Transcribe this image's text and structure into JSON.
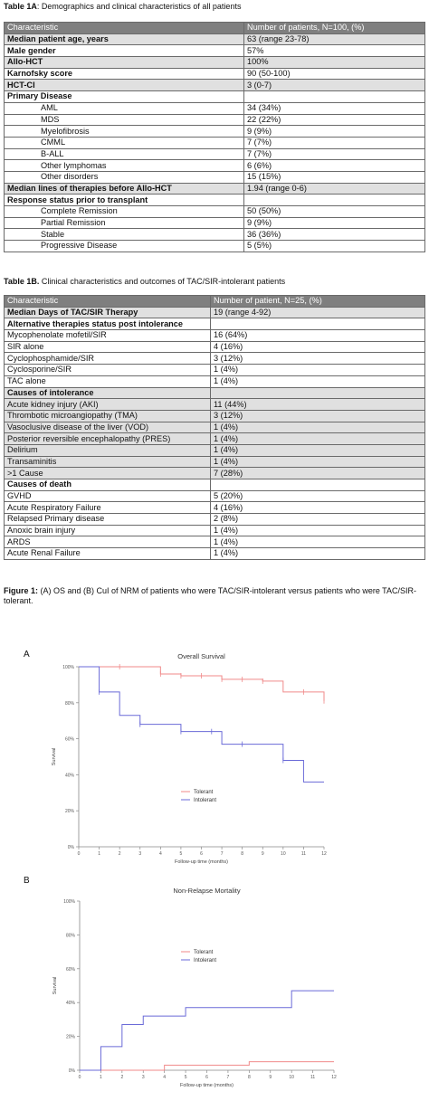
{
  "table1a": {
    "caption_bold": "Table 1A",
    "caption_rest": ": Demographics and clinical characteristics of all patients",
    "header": [
      "Characteristic",
      "Number of patients, N=100, (%)"
    ],
    "rows": [
      {
        "label": "Median patient age, years",
        "value": "63 (range 23-78)",
        "style": "bold",
        "shade": true
      },
      {
        "label": "Male gender",
        "value": "57%",
        "style": "bold",
        "shade": false
      },
      {
        "label": "Allo-HCT",
        "value": "100%",
        "style": "bold",
        "shade": true
      },
      {
        "label": "Karnofsky score",
        "value": "90 (50-100)",
        "style": "bold",
        "shade": false
      },
      {
        "label": "HCT-CI",
        "value": "3 (0-7)",
        "style": "bold",
        "shade": true
      },
      {
        "label": "Primary Disease",
        "value": "",
        "style": "bold",
        "shade": false
      },
      {
        "label": "AML",
        "value": "34 (34%)",
        "style": "indent",
        "shade": false
      },
      {
        "label": "MDS",
        "value": "22 (22%)",
        "style": "indent",
        "shade": false
      },
      {
        "label": "Myelofibrosis",
        "value": "9 (9%)",
        "style": "indent",
        "shade": false
      },
      {
        "label": "CMML",
        "value": "7 (7%)",
        "style": "indent",
        "shade": false
      },
      {
        "label": "B-ALL",
        "value": "7 (7%)",
        "style": "indent",
        "shade": false
      },
      {
        "label": "Other lymphomas",
        "value": "6 (6%)",
        "style": "indent",
        "shade": false
      },
      {
        "label": "Other disorders",
        "value": "15 (15%)",
        "style": "indent",
        "shade": false
      },
      {
        "label": "Median lines of therapies before Allo-HCT",
        "value": "1.94 (range 0-6)",
        "style": "bold",
        "shade": true
      },
      {
        "label": "Response status prior to transplant",
        "value": "",
        "style": "bold",
        "shade": false
      },
      {
        "label": "Complete Remission",
        "value": "50 (50%)",
        "style": "indent",
        "shade": false
      },
      {
        "label": "Partial Remission",
        "value": "9 (9%)",
        "style": "indent",
        "shade": false
      },
      {
        "label": "Stable",
        "value": "36 (36%)",
        "style": "indent",
        "shade": false
      },
      {
        "label": "Progressive Disease",
        "value": "5 (5%)",
        "style": "indent",
        "shade": false
      }
    ]
  },
  "table1b": {
    "caption_bold": "Table 1B.",
    "caption_rest": " Clinical characteristics and outcomes of TAC/SIR-intolerant patients",
    "header": [
      "Characteristic",
      "Number of patient, N=25, (%)"
    ],
    "rows": [
      {
        "label": "Median Days of TAC/SIR Therapy",
        "value": "19 (range 4-92)",
        "style": "bold",
        "shade": true
      },
      {
        "label": "Alternative therapies status post intolerance",
        "value": "",
        "style": "bold",
        "shade": false
      },
      {
        "label": "Mycophenolate mofetil/SIR",
        "value": "16 (64%)",
        "style": "plain",
        "shade": false
      },
      {
        "label": "SIR alone",
        "value": "4 (16%)",
        "style": "plain",
        "shade": false
      },
      {
        "label": "Cyclophosphamide/SIR",
        "value": "3 (12%)",
        "style": "plain",
        "shade": false
      },
      {
        "label": "Cyclosporine/SIR",
        "value": "1 (4%)",
        "style": "plain",
        "shade": false
      },
      {
        "label": "TAC alone",
        "value": "1 (4%)",
        "style": "plain",
        "shade": false
      },
      {
        "label": "Causes of intolerance",
        "value": "",
        "style": "bold",
        "shade": true
      },
      {
        "label": "Acute kidney injury (AKI)",
        "value": "11 (44%)",
        "style": "plain",
        "shade": true
      },
      {
        "label": "Thrombotic microangiopathy (TMA)",
        "value": "3 (12%)",
        "style": "plain",
        "shade": true
      },
      {
        "label": "Vasoclusive disease of the liver (VOD)",
        "value": "1 (4%)",
        "style": "plain",
        "shade": true
      },
      {
        "label": "Posterior reversible encephalopathy (PRES)",
        "value": "1 (4%)",
        "style": "plain",
        "shade": true
      },
      {
        "label": "Delirium",
        "value": "1 (4%)",
        "style": "plain",
        "shade": true
      },
      {
        "label": "Transaminitis",
        "value": "1 (4%)",
        "style": "plain",
        "shade": true
      },
      {
        "label": ">1 Cause",
        "value": "7 (28%)",
        "style": "plain",
        "shade": true
      },
      {
        "label": "Causes of death",
        "value": "",
        "style": "bold",
        "shade": false
      },
      {
        "label": "GVHD",
        "value": "5 (20%)",
        "style": "plain",
        "shade": false
      },
      {
        "label": "Acute Respiratory Failure",
        "value": "4 (16%)",
        "style": "plain",
        "shade": false
      },
      {
        "label": "Relapsed Primary disease",
        "value": "2 (8%)",
        "style": "plain",
        "shade": false
      },
      {
        "label": "Anoxic brain injury",
        "value": "1 (4%)",
        "style": "plain",
        "shade": false
      },
      {
        "label": "ARDS",
        "value": "1 (4%)",
        "style": "plain",
        "shade": false
      },
      {
        "label": "Acute Renal Failure",
        "value": "1 (4%)",
        "style": "plain",
        "shade": false
      }
    ]
  },
  "figure": {
    "caption_bold": "Figure 1:",
    "caption_rest": " (A) OS and (B) CuI of NRM of patients who were TAC/SIR-intolerant versus patients who were TAC/SIR-tolerant."
  },
  "colors": {
    "tolerant": "#f08a8a",
    "intolerant": "#6a6ad8",
    "header_bg": "#7f7f7f",
    "shade_bg": "#e0e0e0"
  },
  "chart_data": [
    {
      "panel_label": "A",
      "type": "line",
      "step": true,
      "title": "Overall Survival",
      "xlabel": "Follow-up time (months)",
      "ylabel": "Survival",
      "xlim": [
        0,
        12
      ],
      "ylim": [
        0,
        100
      ],
      "xticks": [
        "0",
        "1",
        "2",
        "3",
        "4",
        "5",
        "6",
        "7",
        "8",
        "9",
        "10",
        "11",
        "12"
      ],
      "yticks": [
        "0%",
        "20%",
        "40%",
        "60%",
        "80%",
        "100%"
      ],
      "legend_position": "center",
      "series": [
        {
          "name": "Tolerant",
          "color_key": "tolerant",
          "x": [
            0,
            4,
            5,
            7,
            9,
            10,
            12,
            12
          ],
          "y": [
            100,
            96,
            95,
            93,
            92,
            86,
            86,
            81
          ],
          "censor_x": [
            2,
            4,
            5,
            6,
            7,
            8,
            9,
            11,
            12
          ]
        },
        {
          "name": "Intolerant",
          "color_key": "intolerant",
          "x": [
            0,
            1,
            2,
            3,
            5,
            7,
            10,
            11,
            12
          ],
          "y": [
            100,
            86,
            73,
            68,
            64,
            57,
            48,
            36,
            36
          ],
          "censor_x": [
            1,
            3,
            5,
            6.5,
            8,
            10
          ]
        }
      ]
    },
    {
      "panel_label": "B",
      "type": "line",
      "step": true,
      "title": "Non-Relapse Mortality",
      "xlabel": "Follow-up time (months)",
      "ylabel": "Survival",
      "xlim": [
        0,
        12
      ],
      "ylim": [
        0,
        100
      ],
      "xticks": [
        "0",
        "1",
        "2",
        "3",
        "4",
        "5",
        "6",
        "7",
        "8",
        "9",
        "10",
        "11",
        "12"
      ],
      "yticks": [
        "0%",
        "20%",
        "40%",
        "60%",
        "80%",
        "100%"
      ],
      "legend_position": "center",
      "series": [
        {
          "name": "Tolerant",
          "color_key": "tolerant",
          "x": [
            0,
            4,
            8,
            12
          ],
          "y": [
            0,
            3,
            5,
            5
          ],
          "censor_x": []
        },
        {
          "name": "Intolerant",
          "color_key": "intolerant",
          "x": [
            0,
            1,
            2,
            3,
            5,
            10,
            12
          ],
          "y": [
            0,
            14,
            27,
            32,
            37,
            47,
            47
          ],
          "censor_x": []
        }
      ]
    }
  ]
}
